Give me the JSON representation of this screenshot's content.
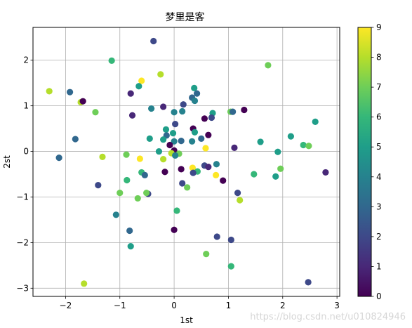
{
  "chart_data": {
    "type": "scatter",
    "title": "梦里是客",
    "xlabel": "1st",
    "ylabel": "2st",
    "xlim": [
      -2.6,
      3.05
    ],
    "ylim": [
      -3.18,
      2.72
    ],
    "xticks": [
      -2,
      -1,
      0,
      1,
      2,
      3
    ],
    "yticks": [
      -3,
      -2,
      -1,
      0,
      1,
      2
    ],
    "grid": true,
    "colormap": "viridis",
    "clim": [
      0,
      9
    ],
    "colorbar_ticks": [
      0,
      1,
      2,
      3,
      4,
      5,
      6,
      7,
      8,
      9
    ],
    "points": [
      {
        "x": -0.38,
        "y": 2.42,
        "c": 2
      },
      {
        "x": -1.15,
        "y": 1.99,
        "c": 6
      },
      {
        "x": 1.73,
        "y": 1.89,
        "c": 7
      },
      {
        "x": -0.25,
        "y": 1.69,
        "c": 8
      },
      {
        "x": -0.6,
        "y": 1.55,
        "c": 9
      },
      {
        "x": -0.65,
        "y": 1.43,
        "c": 5
      },
      {
        "x": 0.37,
        "y": 1.39,
        "c": 5
      },
      {
        "x": -2.3,
        "y": 1.32,
        "c": 8
      },
      {
        "x": -1.92,
        "y": 1.3,
        "c": 3
      },
      {
        "x": -0.8,
        "y": 1.27,
        "c": 1
      },
      {
        "x": 0.42,
        "y": 1.27,
        "c": 3
      },
      {
        "x": 0.33,
        "y": 1.18,
        "c": 3
      },
      {
        "x": 0.38,
        "y": 1.11,
        "c": 4
      },
      {
        "x": -1.72,
        "y": 1.08,
        "c": 8
      },
      {
        "x": -1.68,
        "y": 1.1,
        "c": 0
      },
      {
        "x": 0.17,
        "y": 1.03,
        "c": 2
      },
      {
        "x": -0.2,
        "y": 0.98,
        "c": 1
      },
      {
        "x": -0.42,
        "y": 0.94,
        "c": 4
      },
      {
        "x": 0.15,
        "y": 0.88,
        "c": 4
      },
      {
        "x": 1.04,
        "y": 0.87,
        "c": 7
      },
      {
        "x": 1.08,
        "y": 0.87,
        "c": 3
      },
      {
        "x": 1.29,
        "y": 0.91,
        "c": 0
      },
      {
        "x": -1.45,
        "y": 0.86,
        "c": 7
      },
      {
        "x": 0.0,
        "y": 0.86,
        "c": 4
      },
      {
        "x": 0.71,
        "y": 0.84,
        "c": 5
      },
      {
        "x": -0.77,
        "y": 0.79,
        "c": 1
      },
      {
        "x": 0.56,
        "y": 0.72,
        "c": 0
      },
      {
        "x": 0.69,
        "y": 0.74,
        "c": 2
      },
      {
        "x": 2.6,
        "y": 0.65,
        "c": 5
      },
      {
        "x": 0.02,
        "y": 0.6,
        "c": 2
      },
      {
        "x": 0.35,
        "y": 0.5,
        "c": 0
      },
      {
        "x": -0.15,
        "y": 0.48,
        "c": 5
      },
      {
        "x": 0.38,
        "y": 0.42,
        "c": 5
      },
      {
        "x": -0.02,
        "y": 0.4,
        "c": 5
      },
      {
        "x": 0.63,
        "y": 0.36,
        "c": 0
      },
      {
        "x": -0.14,
        "y": 0.35,
        "c": 3
      },
      {
        "x": 2.15,
        "y": 0.33,
        "c": 5
      },
      {
        "x": -0.45,
        "y": 0.28,
        "c": 5
      },
      {
        "x": -0.2,
        "y": 0.26,
        "c": 5
      },
      {
        "x": -1.82,
        "y": 0.27,
        "c": 3
      },
      {
        "x": 0.5,
        "y": 0.28,
        "c": 3
      },
      {
        "x": 0.13,
        "y": 0.23,
        "c": 3
      },
      {
        "x": 0.33,
        "y": 0.22,
        "c": 4
      },
      {
        "x": 0.0,
        "y": 0.22,
        "c": 4
      },
      {
        "x": 1.59,
        "y": 0.21,
        "c": 5
      },
      {
        "x": -0.08,
        "y": 0.14,
        "c": 0
      },
      {
        "x": 2.38,
        "y": 0.14,
        "c": 6
      },
      {
        "x": 2.48,
        "y": 0.12,
        "c": 7
      },
      {
        "x": 0.58,
        "y": 0.07,
        "c": 9
      },
      {
        "x": 1.11,
        "y": 0.08,
        "c": 1
      },
      {
        "x": 0.0,
        "y": 0.02,
        "c": 0
      },
      {
        "x": -0.28,
        "y": 0.0,
        "c": 5
      },
      {
        "x": 1.91,
        "y": -0.01,
        "c": 5
      },
      {
        "x": -0.05,
        "y": -0.04,
        "c": 8
      },
      {
        "x": 0.09,
        "y": -0.05,
        "c": 7
      },
      {
        "x": -0.88,
        "y": -0.07,
        "c": 7
      },
      {
        "x": 0.02,
        "y": -0.09,
        "c": 4
      },
      {
        "x": -1.32,
        "y": -0.12,
        "c": 8
      },
      {
        "x": -2.12,
        "y": -0.14,
        "c": 3
      },
      {
        "x": -0.63,
        "y": -0.16,
        "c": 9
      },
      {
        "x": -0.2,
        "y": -0.17,
        "c": 8
      },
      {
        "x": 0.78,
        "y": -0.28,
        "c": 4
      },
      {
        "x": 0.56,
        "y": -0.31,
        "c": 2
      },
      {
        "x": 0.63,
        "y": -0.34,
        "c": 1
      },
      {
        "x": 0.34,
        "y": -0.36,
        "c": 9
      },
      {
        "x": 0.13,
        "y": -0.39,
        "c": 0
      },
      {
        "x": 1.96,
        "y": -0.38,
        "c": 7
      },
      {
        "x": 0.43,
        "y": -0.44,
        "c": 6
      },
      {
        "x": -0.17,
        "y": -0.45,
        "c": 0
      },
      {
        "x": 0.35,
        "y": -0.47,
        "c": 2
      },
      {
        "x": -0.6,
        "y": -0.46,
        "c": 6
      },
      {
        "x": 2.79,
        "y": -0.46,
        "c": 1
      },
      {
        "x": 1.47,
        "y": -0.5,
        "c": 6
      },
      {
        "x": 0.77,
        "y": -0.52,
        "c": 9
      },
      {
        "x": -0.54,
        "y": -0.52,
        "c": 3
      },
      {
        "x": 1.87,
        "y": -0.55,
        "c": 5
      },
      {
        "x": -0.87,
        "y": -0.63,
        "c": 6
      },
      {
        "x": 0.9,
        "y": -0.64,
        "c": 0
      },
      {
        "x": 0.15,
        "y": -0.7,
        "c": 2
      },
      {
        "x": -1.4,
        "y": -0.74,
        "c": 2
      },
      {
        "x": 0.24,
        "y": -0.79,
        "c": 7
      },
      {
        "x": -1.0,
        "y": -0.91,
        "c": 7
      },
      {
        "x": -0.48,
        "y": -0.93,
        "c": 2
      },
      {
        "x": -0.51,
        "y": -0.91,
        "c": 7
      },
      {
        "x": 1.17,
        "y": -0.91,
        "c": 2
      },
      {
        "x": -0.67,
        "y": -1.03,
        "c": 7
      },
      {
        "x": 1.21,
        "y": -1.07,
        "c": 8
      },
      {
        "x": 0.05,
        "y": -1.3,
        "c": 6
      },
      {
        "x": -1.07,
        "y": -1.39,
        "c": 4
      },
      {
        "x": 0.0,
        "y": -1.72,
        "c": 0
      },
      {
        "x": -0.82,
        "y": -1.74,
        "c": 3
      },
      {
        "x": 0.79,
        "y": -1.87,
        "c": 2
      },
      {
        "x": 1.05,
        "y": -1.94,
        "c": 2
      },
      {
        "x": -0.8,
        "y": -2.08,
        "c": 5
      },
      {
        "x": 0.59,
        "y": -2.25,
        "c": 7
      },
      {
        "x": 1.05,
        "y": -2.52,
        "c": 6
      },
      {
        "x": 2.47,
        "y": -2.87,
        "c": 2
      },
      {
        "x": -1.66,
        "y": -2.9,
        "c": 8
      }
    ]
  },
  "watermark": "https://blog.csdn.net/u010824946"
}
